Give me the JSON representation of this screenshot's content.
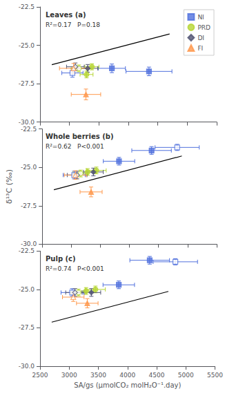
{
  "chart_data": [
    {
      "type": "scatter",
      "title": "Leaves (a)",
      "annotations": [
        "R²=0.17   P=0.18"
      ],
      "xlim": [
        2500,
        5500
      ],
      "xticks": [
        2500,
        3000,
        3500,
        4000,
        4500,
        5000,
        5500
      ],
      "ylim": [
        -30.0,
        -22.5
      ],
      "yticks": [
        {
          "value": -30.0,
          "label": "-30.0"
        },
        -27.5,
        {
          "value": -25.0,
          "label": "-25.0"
        },
        -22.5
      ],
      "grid": false,
      "tick_labels": "y",
      "legend": "upper right",
      "series": [
        {
          "type": "line",
          "color": "#000000",
          "x": [
            2700,
            4700
          ],
          "values": [
            -26.26,
            -24.26
          ]
        },
        {
          "name": "NI",
          "marker": "square",
          "x": [
            3050,
            3720,
            4350
          ],
          "values": [
            -26.8,
            -26.5,
            -26.7
          ],
          "x_errors": [
            180,
            230,
            390
          ],
          "y_errors": [
            0.28,
            0.28,
            0.28
          ],
          "filled": [
            false,
            true,
            true
          ]
        },
        {
          "name": "PRD",
          "marker": "circle",
          "x": [
            3160,
            3290,
            3380
          ],
          "values": [
            -26.5,
            -26.9,
            -26.4
          ],
          "x_errors": [
            130,
            110,
            120
          ],
          "y_errors": [
            0.22,
            0.22,
            0.2
          ],
          "filled": [
            false,
            true,
            true
          ]
        },
        {
          "name": "DI",
          "marker": "diamond",
          "x": [
            3100,
            3310
          ],
          "values": [
            -26.4,
            -26.5
          ],
          "x_errors": [
            150,
            170
          ],
          "y_errors": [
            0.25,
            0.25
          ],
          "filled": [
            false,
            true
          ]
        },
        {
          "name": "FI",
          "marker": "triangle",
          "x": [
            3070,
            3280
          ],
          "values": [
            -26.5,
            -28.2
          ],
          "x_errors": [
            240,
            250
          ],
          "y_errors": [
            0.32,
            0.35
          ],
          "filled": [
            false,
            true
          ]
        }
      ]
    },
    {
      "type": "scatter",
      "title": "Whole berries (b)",
      "annotations": [
        "R²=0.62   P<0.001"
      ],
      "ylabel": "δ¹³C (‰)",
      "xlim": [
        2500,
        5500
      ],
      "xticks": [
        2500,
        3000,
        3500,
        4000,
        4500,
        5000,
        5500
      ],
      "ylim": [
        -30.0,
        -22.5
      ],
      "yticks": [
        {
          "value": -30.0,
          "label": "-30.0"
        },
        -27.5,
        {
          "value": -25.0,
          "label": "-25.0"
        },
        -22.5
      ],
      "grid": false,
      "tick_labels": "y",
      "series": [
        {
          "type": "line",
          "color": "#000000",
          "x": [
            2700,
            4900
          ],
          "values": [
            -26.46,
            -24.26
          ]
        },
        {
          "name": "NI",
          "marker": "square",
          "x": [
            3050,
            3820,
            4380,
            4820
          ],
          "values": [
            -25.5,
            -24.6,
            -23.9,
            -23.7
          ],
          "x_errors": [
            190,
            270,
            340,
            380
          ],
          "y_errors": [
            0.25,
            0.25,
            0.25,
            0.2
          ],
          "filled": [
            false,
            true,
            true,
            false
          ]
        },
        {
          "name": "PRD",
          "marker": "circle",
          "x": [
            3160,
            3280,
            3430
          ],
          "values": [
            -25.4,
            -25.3,
            -25.2
          ],
          "x_errors": [
            130,
            130,
            170
          ],
          "y_errors": [
            0.22,
            0.22,
            0.22
          ],
          "filled": [
            false,
            true,
            true
          ]
        },
        {
          "name": "DI",
          "marker": "diamond",
          "x": [
            3100,
            3380
          ],
          "values": [
            -25.5,
            -25.3
          ],
          "x_errors": [
            170,
            170
          ],
          "y_errors": [
            0.25,
            0.25
          ],
          "filled": [
            false,
            true
          ]
        },
        {
          "name": "FI",
          "marker": "triangle",
          "x": [
            3070,
            3340
          ],
          "values": [
            -25.5,
            -26.6
          ],
          "x_errors": [
            190,
            190
          ],
          "y_errors": [
            0.28,
            0.32
          ],
          "filled": [
            false,
            true
          ]
        }
      ]
    },
    {
      "type": "scatter",
      "title": "Pulp (c)",
      "annotations": [
        "R²=0.74   P<0.001"
      ],
      "xlabel": "SA/gs (μmolCO₂ molH₂O⁻¹.day)",
      "xlim": [
        2500,
        5500
      ],
      "xticks": [
        2500,
        3000,
        3500,
        4000,
        4500,
        5000,
        5500
      ],
      "ylim": [
        -30.0,
        -22.5
      ],
      "yticks": [
        {
          "value": -30.0,
          "label": "-30.0"
        },
        -27.5,
        {
          "value": -25.0,
          "label": "-25.0"
        },
        -22.5
      ],
      "grid": false,
      "series": [
        {
          "type": "line",
          "color": "#000000",
          "x": [
            2700,
            4700
          ],
          "values": [
            -27.13,
            -25.13
          ]
        },
        {
          "name": "NI",
          "marker": "square",
          "x": [
            3050,
            3850,
            4380,
            4820
          ],
          "values": [
            -25.2,
            -24.7,
            -23.1,
            -23.2
          ],
          "x_errors": [
            190,
            270,
            340,
            380
          ],
          "y_errors": [
            0.25,
            0.25,
            0.25,
            0.2
          ],
          "filled": [
            false,
            true,
            true,
            false
          ]
        },
        {
          "name": "PRD",
          "marker": "circle",
          "x": [
            3160,
            3290,
            3450
          ],
          "values": [
            -25.2,
            -25.1,
            -25.0
          ],
          "x_errors": [
            130,
            130,
            170
          ],
          "y_errors": [
            0.22,
            0.22,
            0.22
          ],
          "filled": [
            false,
            true,
            true
          ]
        },
        {
          "name": "DI",
          "marker": "diamond",
          "x": [
            3100,
            3380
          ],
          "values": [
            -25.2,
            -25.2
          ],
          "x_errors": [
            160,
            160
          ],
          "y_errors": [
            0.25,
            0.25
          ],
          "filled": [
            false,
            true
          ]
        },
        {
          "name": "FI",
          "marker": "triangle",
          "x": [
            3070,
            3310
          ],
          "values": [
            -25.5,
            -25.9
          ],
          "x_errors": [
            185,
            185
          ],
          "y_errors": [
            0.28,
            0.3
          ],
          "filled": [
            false,
            true
          ]
        }
      ]
    }
  ]
}
